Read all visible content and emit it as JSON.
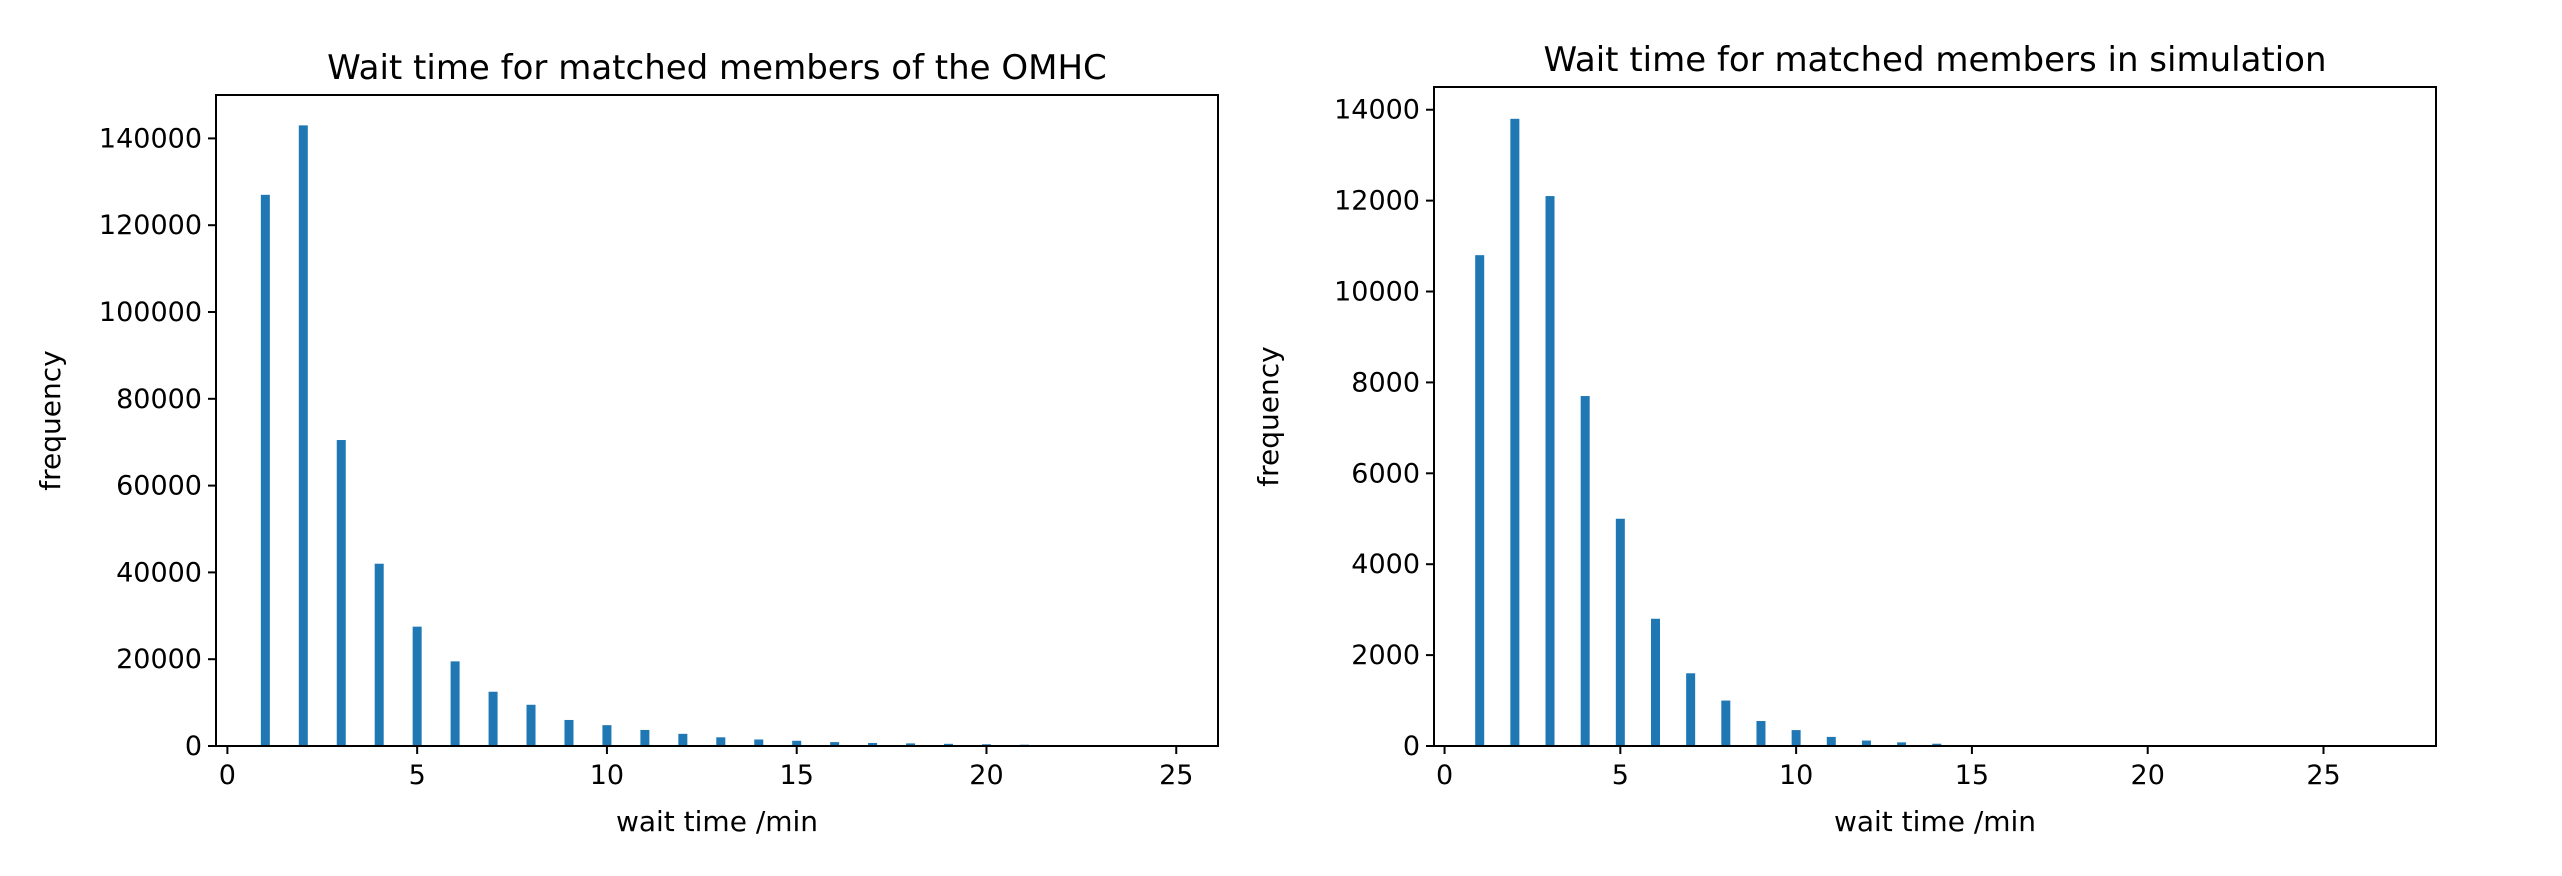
{
  "chart_data": [
    {
      "type": "bar",
      "title": "Wait time for matched members of the OMHC",
      "xlabel": "wait time /min",
      "ylabel": "frequency",
      "xlim": [
        -0.3,
        26.1
      ],
      "ylim": [
        0,
        150000
      ],
      "xticks": [
        0,
        5,
        10,
        15,
        20,
        25
      ],
      "yticks": [
        0,
        20000,
        40000,
        60000,
        80000,
        100000,
        120000,
        140000
      ],
      "grid": false,
      "color": "#1f77b4",
      "x": [
        1,
        2,
        3,
        4,
        5,
        6,
        7,
        8,
        9,
        10,
        11,
        12,
        13,
        14,
        15,
        16,
        17,
        18,
        19,
        20,
        21
      ],
      "values": [
        127000,
        143000,
        70500,
        42000,
        27500,
        19500,
        12500,
        9500,
        6000,
        4800,
        3700,
        2800,
        2000,
        1500,
        1200,
        900,
        700,
        600,
        500,
        400,
        300
      ]
    },
    {
      "type": "bar",
      "title": "Wait time for matched members in simulation",
      "xlabel": "wait time /min",
      "ylabel": "frequency",
      "xlim": [
        -0.3,
        28.2
      ],
      "ylim": [
        0,
        14500
      ],
      "xticks": [
        0,
        5,
        10,
        15,
        20,
        25
      ],
      "yticks": [
        0,
        2000,
        4000,
        6000,
        8000,
        10000,
        12000,
        14000
      ],
      "grid": false,
      "color": "#1f77b4",
      "x": [
        1,
        2,
        3,
        4,
        5,
        6,
        7,
        8,
        9,
        10,
        11,
        12,
        13,
        14,
        15
      ],
      "values": [
        10800,
        13800,
        12100,
        7700,
        5000,
        2800,
        1600,
        1000,
        550,
        350,
        200,
        120,
        80,
        50,
        20
      ]
    }
  ]
}
